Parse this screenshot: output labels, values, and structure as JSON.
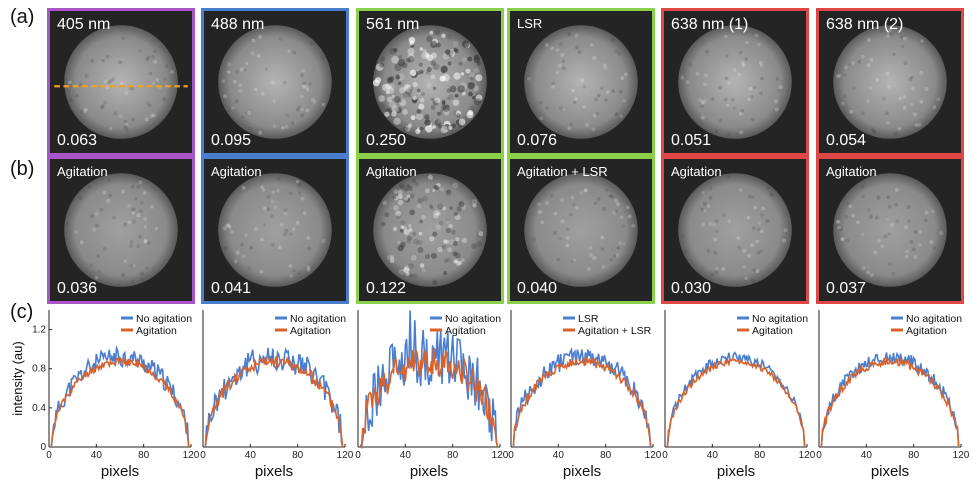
{
  "figure": {
    "label_a": "(a)",
    "label_b": "(b)",
    "label_c": "(c)",
    "colors": {
      "purple": "#a855c8",
      "blue": "#4a7fd0",
      "green": "#8ccf4a",
      "red": "#e04848",
      "orange": "#f0a020"
    },
    "row_a": [
      {
        "title": "405 nm",
        "value": "0.063",
        "border": "purple"
      },
      {
        "title": "488 nm",
        "value": "0.095",
        "border": "blue"
      },
      {
        "title": "561 nm",
        "value": "0.250",
        "border": "green"
      },
      {
        "title": "LSR",
        "value": "0.076",
        "border": "green"
      },
      {
        "title": "638 nm (1)",
        "value": "0.051",
        "border": "red"
      },
      {
        "title": "638 nm (2)",
        "value": "0.054",
        "border": "red"
      }
    ],
    "row_b": [
      {
        "title": "Agitation",
        "value": "0.036",
        "border": "purple"
      },
      {
        "title": "Agitation",
        "value": "0.041",
        "border": "blue"
      },
      {
        "title": "Agitation",
        "value": "0.122",
        "border": "green"
      },
      {
        "title": "Agitation + LSR",
        "value": "0.040",
        "border": "green"
      },
      {
        "title": "Agitation",
        "value": "0.030",
        "border": "red"
      },
      {
        "title": "Agitation",
        "value": "0.037",
        "border": "red"
      }
    ]
  },
  "chart_data": [
    {
      "type": "line",
      "xlabel": "pixels",
      "ylabel": "intensity (au)",
      "xlim": [
        0,
        120
      ],
      "ylim": [
        0,
        1.4
      ],
      "xticks": [
        "0",
        "40",
        "80",
        "120"
      ],
      "yticks": [
        "0",
        "0.4",
        "0.8",
        "1.2"
      ],
      "legend": "top-right",
      "series": [
        {
          "name": "No agitation",
          "color": "#4a7fd0"
        },
        {
          "name": "Agitation",
          "color": "#d9622b"
        }
      ],
      "noise": 0.1,
      "ratio": 0.4
    },
    {
      "type": "line",
      "xlabel": "pixels",
      "ylabel": "",
      "xlim": [
        0,
        120
      ],
      "ylim": [
        0,
        1.4
      ],
      "xticks": [
        "0",
        "40",
        "80",
        "120"
      ],
      "yticks": [],
      "legend": "top-right",
      "series": [
        {
          "name": "No agitation",
          "color": "#4a7fd0"
        },
        {
          "name": "Agitation",
          "color": "#d9622b"
        }
      ],
      "noise": 0.14,
      "ratio": 0.45
    },
    {
      "type": "line",
      "xlabel": "pixels",
      "ylabel": "",
      "xlim": [
        0,
        120
      ],
      "ylim": [
        0,
        1.4
      ],
      "xticks": [
        "0",
        "40",
        "80",
        "120"
      ],
      "yticks": [],
      "legend": "top-right",
      "series": [
        {
          "name": "No agitation",
          "color": "#4a7fd0"
        },
        {
          "name": "Agitation",
          "color": "#d9622b"
        }
      ],
      "noise": 0.3,
      "ratio": 0.5
    },
    {
      "type": "line",
      "xlabel": "pixels",
      "ylabel": "",
      "xlim": [
        0,
        120
      ],
      "ylim": [
        0,
        1.4
      ],
      "xticks": [
        "0",
        "40",
        "80",
        "120"
      ],
      "yticks": [],
      "legend": "top-right",
      "series": [
        {
          "name": "LSR",
          "color": "#4a7fd0"
        },
        {
          "name": "Agitation + LSR",
          "color": "#d9622b"
        }
      ],
      "noise": 0.1,
      "ratio": 0.45
    },
    {
      "type": "line",
      "xlabel": "pixels",
      "ylabel": "",
      "xlim": [
        0,
        120
      ],
      "ylim": [
        0,
        1.4
      ],
      "xticks": [
        "0",
        "40",
        "80",
        "120"
      ],
      "yticks": [],
      "legend": "top-right",
      "series": [
        {
          "name": "No agitation",
          "color": "#4a7fd0"
        },
        {
          "name": "Agitation",
          "color": "#d9622b"
        }
      ],
      "noise": 0.05,
      "ratio": 0.6
    },
    {
      "type": "line",
      "xlabel": "pixels",
      "ylabel": "",
      "xlim": [
        0,
        120
      ],
      "ylim": [
        0,
        1.4
      ],
      "xticks": [
        "0",
        "40",
        "80",
        "120"
      ],
      "yticks": [],
      "legend": "top-right",
      "series": [
        {
          "name": "No agitation",
          "color": "#4a7fd0"
        },
        {
          "name": "Agitation",
          "color": "#d9622b"
        }
      ],
      "noise": 0.07,
      "ratio": 0.6
    }
  ]
}
